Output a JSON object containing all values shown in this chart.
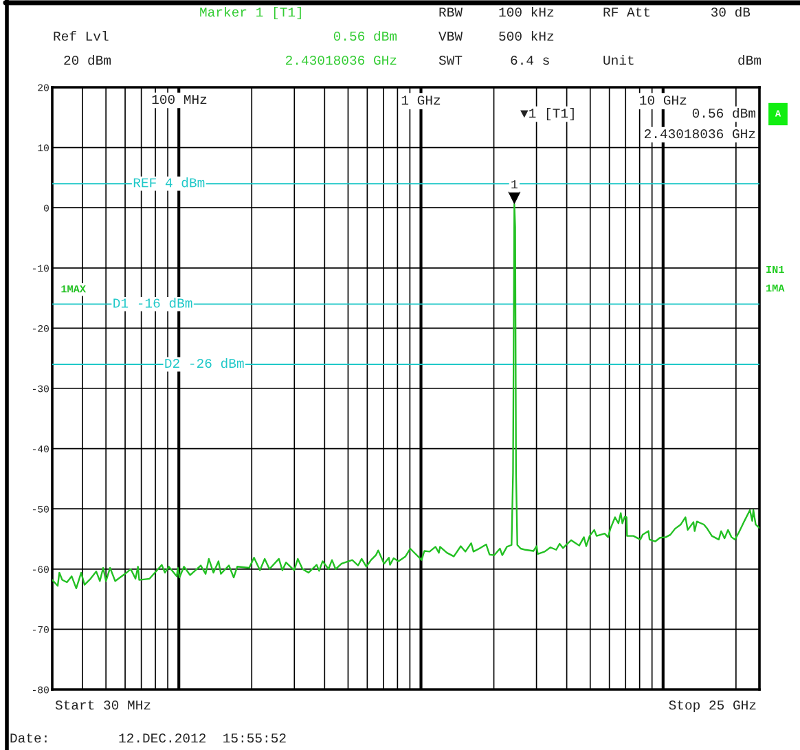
{
  "chart_data": {
    "type": "line",
    "log": "x",
    "grid": true,
    "xlim": [
      0.03,
      25
    ],
    "ylim": [
      -80,
      20
    ],
    "xticks": [
      {
        "value": 0.04,
        "label": null
      },
      {
        "value": 0.05,
        "label": null
      },
      {
        "value": 0.06,
        "label": null
      },
      {
        "value": 0.07,
        "label": null
      },
      {
        "value": 0.08,
        "label": null
      },
      {
        "value": 0.09,
        "label": null
      },
      {
        "value": 0.1,
        "label": null
      },
      {
        "value": 0.2,
        "label": null
      },
      {
        "value": 0.3,
        "label": null
      },
      {
        "value": 0.4,
        "label": null
      },
      {
        "value": 0.5,
        "label": null
      },
      {
        "value": 0.6,
        "label": null
      },
      {
        "value": 0.7,
        "label": null
      },
      {
        "value": 0.8,
        "label": null
      },
      {
        "value": 0.9,
        "label": null
      },
      {
        "value": 1,
        "label": "1 GHz"
      },
      {
        "value": 2,
        "label": null
      },
      {
        "value": 3,
        "label": null
      },
      {
        "value": 4,
        "label": null
      },
      {
        "value": 5,
        "label": null
      },
      {
        "value": 6,
        "label": null
      },
      {
        "value": 7,
        "label": null
      },
      {
        "value": 8,
        "label": null
      },
      {
        "value": 9,
        "label": null
      },
      {
        "value": 10,
        "label": "10 GHz"
      },
      {
        "value": 20,
        "label": null
      }
    ],
    "yticks": [
      -80,
      -70,
      -60,
      -50,
      -40,
      -30,
      -20,
      -10,
      0,
      10,
      20
    ],
    "ref_lines": [
      {
        "axis": "y",
        "value": 4,
        "label": "REF 4 dBm",
        "color": "#1fc8c8"
      },
      {
        "axis": "y",
        "value": -16,
        "label": "D1 -16 dBm",
        "color": "#1fc8c8"
      },
      {
        "axis": "y",
        "value": -26,
        "label": "D2 -26 dBm",
        "color": "#1fc8c8"
      }
    ],
    "series": [
      {
        "name": "1MAX",
        "color": "#22c022",
        "x": [
          0.03,
          0.0316,
          0.0321,
          0.033,
          0.0345,
          0.0361,
          0.0377,
          0.0395,
          0.0408,
          0.0432,
          0.0456,
          0.0472,
          0.0487,
          0.05,
          0.052,
          0.0546,
          0.0599,
          0.0633,
          0.0662,
          0.0678,
          0.0686,
          0.0757,
          0.085,
          0.0876,
          0.0909,
          0.098,
          0.0991,
          0.1006,
          0.105,
          0.1113,
          0.1232,
          0.129,
          0.133,
          0.139,
          0.1458,
          0.1492,
          0.161,
          0.1685,
          0.1743,
          0.1953,
          0.2044,
          0.2163,
          0.2263,
          0.2367,
          0.2589,
          0.2678,
          0.277,
          0.2996,
          0.31,
          0.3243,
          0.343,
          0.3709,
          0.3795,
          0.3926,
          0.415,
          0.429,
          0.444,
          0.47,
          0.52,
          0.55,
          0.569,
          0.595,
          0.622,
          0.651,
          0.666,
          0.704,
          0.737,
          0.745,
          0.771,
          0.807,
          0.863,
          0.903,
          0.934,
          0.984,
          1.006,
          1.033,
          1.086,
          1.148,
          1.186,
          1.199,
          1.28,
          1.367,
          1.46,
          1.526,
          1.612,
          1.648,
          1.741,
          1.859,
          1.92,
          2.006,
          2.119,
          2.167,
          2.264,
          2.367,
          2.4,
          2.43018036,
          2.45,
          2.47,
          2.5,
          2.581,
          2.697,
          2.914,
          3.004,
          3.037,
          3.244,
          3.425,
          3.618,
          3.738,
          3.862,
          4.171,
          4.313,
          4.506,
          4.708,
          4.813,
          4.973,
          5.196,
          5.313,
          5.735,
          5.925,
          6.059,
          6.33,
          6.54,
          6.687,
          6.79,
          6.941,
          7.066,
          7.097,
          7.541,
          8.053,
          8.235,
          8.699,
          8.791,
          9.289,
          9.705,
          10.256,
          10.715,
          11.201,
          11.831,
          12.368,
          12.639,
          13.35,
          13.5,
          13.793,
          14.733,
          15.223,
          15.903,
          16.982,
          17.362,
          17.939,
          18.536,
          19.164,
          19.802,
          20.688,
          21.614,
          22.836,
          23.347,
          23.595,
          24.122,
          25
        ],
        "values": [
          -61.8,
          -62.8,
          -60.6,
          -61.8,
          -62.2,
          -61.2,
          -63.2,
          -60.6,
          -62.6,
          -61.6,
          -60.4,
          -62.0,
          -59.8,
          -62.0,
          -59.8,
          -62.0,
          -60.8,
          -60.0,
          -61.6,
          -59.6,
          -61.8,
          -61.6,
          -59.3,
          -60.6,
          -59.6,
          -61.2,
          -59.8,
          -61.4,
          -59.6,
          -61.0,
          -59.4,
          -60.8,
          -58.3,
          -60.6,
          -58.7,
          -60.8,
          -59.4,
          -61.4,
          -59.6,
          -59.8,
          -58.1,
          -60.2,
          -58.3,
          -60.0,
          -58.3,
          -60.2,
          -58.9,
          -60.2,
          -58.3,
          -60.0,
          -60.6,
          -59.3,
          -60.3,
          -58.7,
          -60.0,
          -58.5,
          -60.0,
          -59.1,
          -58.5,
          -59.4,
          -58.3,
          -59.6,
          -58.5,
          -57.7,
          -56.9,
          -59.1,
          -58.1,
          -59.3,
          -58.2,
          -58.7,
          -57.9,
          -56.6,
          -57.2,
          -58.1,
          -58.5,
          -57.0,
          -57.1,
          -56.3,
          -57.3,
          -56.3,
          -57.3,
          -57.9,
          -56.2,
          -57.1,
          -55.7,
          -57.1,
          -56.6,
          -55.9,
          -57.6,
          -57.7,
          -56.6,
          -57.7,
          -56.3,
          -56.0,
          -44,
          0.56,
          -3.2,
          -44,
          -56.0,
          -56.6,
          -56.8,
          -57.0,
          -56.2,
          -57.5,
          -57.1,
          -56.4,
          -56.8,
          -55.8,
          -56.5,
          -55.2,
          -55.6,
          -56.1,
          -54.7,
          -56.2,
          -54.5,
          -53.5,
          -54.5,
          -54.1,
          -54.7,
          -53.3,
          -51.4,
          -52.4,
          -50.7,
          -52.4,
          -51.3,
          -51.4,
          -54.5,
          -54.5,
          -55.1,
          -54.3,
          -53.7,
          -55.1,
          -55.4,
          -54.8,
          -54.7,
          -54.3,
          -53.3,
          -52.6,
          -51.4,
          -53.5,
          -52.2,
          -53.7,
          -52.1,
          -52.6,
          -53.3,
          -54.5,
          -55.1,
          -53.7,
          -54.9,
          -53.5,
          -54.7,
          -55.1,
          -53.7,
          -52.1,
          -50.2,
          -52.0,
          -50.2,
          -52.6,
          -53.2
        ]
      }
    ],
    "annotations": [
      "Marker 1 [T1]",
      "RBW",
      "100 kHz",
      "RF Att",
      "30 dB",
      "Ref Lvl",
      "0.56 dBm",
      "VBW",
      "500 kHz",
      "20 dBm",
      "2.43018036 GHz",
      "SWT",
      "6.4 s",
      "Unit",
      "dBm",
      "▼1 [T1]",
      "0.56 dBm",
      "2.43018036 GHz",
      "A",
      "IN1",
      "1MA",
      "Start 30 MHz",
      "Stop 25 GHz",
      "Date:",
      "12.DEC.2012  15:55:52",
      "100 MHz",
      {
        "text": "1",
        "x": 2.43018036,
        "y": 0.56
      }
    ]
  }
}
